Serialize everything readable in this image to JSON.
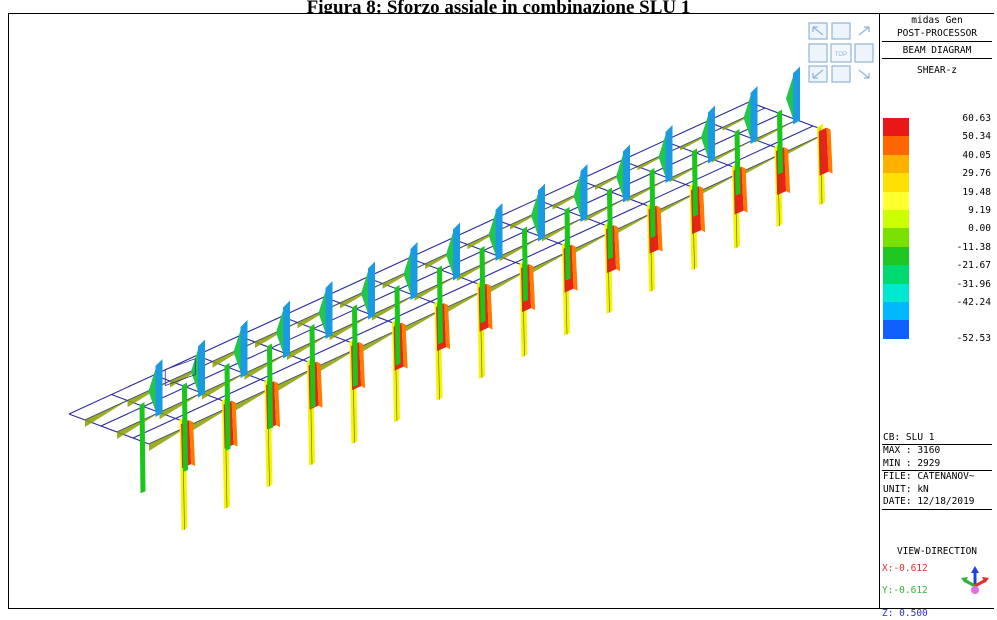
{
  "caption": "Figura 8: Sforzo assiale in combinazione SLU 1",
  "viewcube": {
    "center_label": "TOP"
  },
  "panel": {
    "app_name": "midas Gen",
    "module": "POST-PROCESSOR",
    "diagram": "BEAM DIAGRAM",
    "result": "SHEAR-z",
    "legend": [
      {
        "value": "60.63",
        "color": "#e81818"
      },
      {
        "value": "50.34",
        "color": "#ff6600"
      },
      {
        "value": "40.05",
        "color": "#ffb000"
      },
      {
        "value": "29.76",
        "color": "#ffe000"
      },
      {
        "value": "19.48",
        "color": "#ffff30"
      },
      {
        "value": "9.19",
        "color": "#ccff00"
      },
      {
        "value": "0.00",
        "color": "#7be000"
      },
      {
        "value": "-11.38",
        "color": "#22c622"
      },
      {
        "value": "-21.67",
        "color": "#00d870"
      },
      {
        "value": "-31.96",
        "color": "#00e8d0"
      },
      {
        "value": "-42.24",
        "color": "#00b8ff"
      },
      {
        "value": "-52.53",
        "color": "#1060ff"
      }
    ],
    "cb": "CB: SLU 1",
    "max": "MAX : 3160",
    "min": "MIN : 2929",
    "file": "FILE: CATENANOV~",
    "unit": "UNIT: kN",
    "date": "DATE: 12/18/2019",
    "view_direction": "VIEW-DIRECTION",
    "vx": "X:-0.612",
    "vy": "Y:-0.612",
    "vz": "Z: 0.500"
  }
}
